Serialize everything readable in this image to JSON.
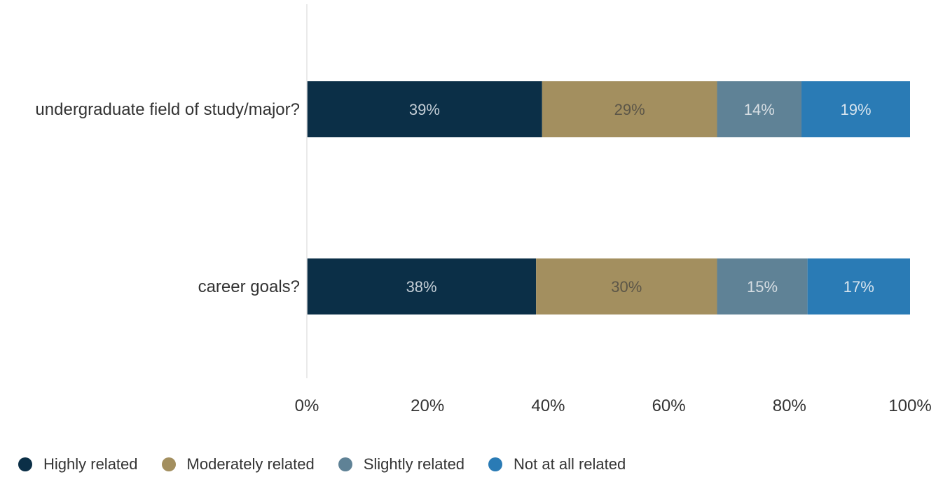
{
  "chart_data": {
    "type": "bar",
    "orientation": "horizontal",
    "stacked": true,
    "categories": [
      "undergraduate field of study/major?",
      "career goals?"
    ],
    "series": [
      {
        "name": "Highly related",
        "values": [
          39,
          38
        ],
        "labels": [
          "39%",
          "38%"
        ],
        "color": "#0b2f47",
        "label_color": "#c4ced6"
      },
      {
        "name": "Moderately related",
        "values": [
          29,
          30
        ],
        "labels": [
          "29%",
          "30%"
        ],
        "color": "#a38f5f",
        "label_color": "#5c5648"
      },
      {
        "name": "Slightly related",
        "values": [
          14,
          15
        ],
        "labels": [
          "14%",
          "15%"
        ],
        "color": "#5f8296",
        "label_color": "#d7dee3"
      },
      {
        "name": "Not at all related",
        "values": [
          19,
          17
        ],
        "labels": [
          "19%",
          "17%"
        ],
        "color": "#2a7bb5",
        "label_color": "#d7e4ee"
      }
    ],
    "xlim": [
      0,
      100
    ],
    "xticks": [
      0,
      20,
      40,
      60,
      80,
      100
    ],
    "xtick_labels": [
      "0%",
      "20%",
      "40%",
      "60%",
      "80%",
      "100%"
    ],
    "grid": false,
    "legend_position": "bottom-left"
  }
}
